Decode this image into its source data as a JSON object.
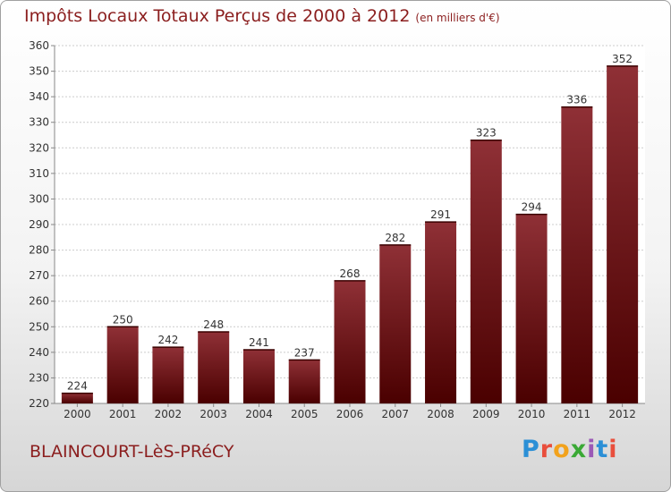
{
  "header": {
    "title": "Impôts Locaux Totaux Perçus de 2000 à 2012",
    "unit": "(en milliers d'€)"
  },
  "footer": {
    "city": "BLAINCOURT-LèS-PRéCY",
    "brand_letters": [
      "P",
      "r",
      "o",
      "x",
      "i",
      "t",
      "i"
    ],
    "brand_colors": [
      "#2b8fd6",
      "#e94e3c",
      "#f2a21c",
      "#3aa935",
      "#9b59b6",
      "#2b8fd6",
      "#e94e3c"
    ]
  },
  "colors": {
    "bar_top": "#8f3036",
    "bar_bottom": "#4a0000",
    "grid": "#cccccc",
    "text": "#333333",
    "title": "#8b1e1e"
  },
  "chart_data": {
    "type": "bar",
    "title": "Impôts Locaux Totaux Perçus de 2000 à 2012",
    "xlabel": "",
    "ylabel": "",
    "ylim": [
      220,
      360
    ],
    "yticks": [
      220,
      230,
      240,
      250,
      260,
      270,
      280,
      290,
      300,
      310,
      320,
      330,
      340,
      350,
      360
    ],
    "categories": [
      "2000",
      "2001",
      "2002",
      "2003",
      "2004",
      "2005",
      "2006",
      "2007",
      "2008",
      "2009",
      "2010",
      "2011",
      "2012"
    ],
    "values": [
      224,
      250,
      242,
      248,
      241,
      237,
      268,
      282,
      291,
      323,
      294,
      336,
      352
    ],
    "grid": true,
    "legend": "none"
  }
}
